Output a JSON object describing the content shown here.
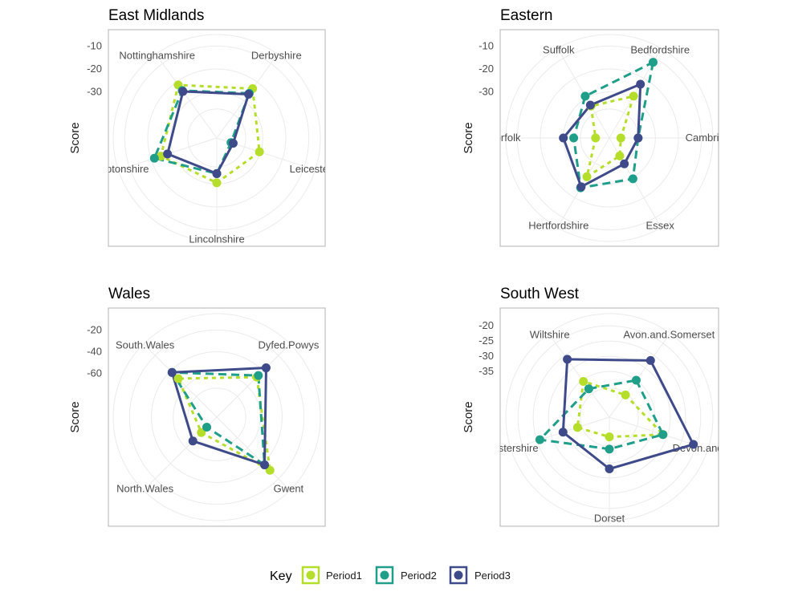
{
  "colors": {
    "Period1": "#b5de2b",
    "Period2": "#1f9e89",
    "Period3": "#3e4a89"
  },
  "legend": {
    "title": "Key",
    "items": [
      "Period1",
      "Period2",
      "Period3"
    ]
  },
  "chart_data": [
    {
      "type": "radar",
      "title": "East Midlands",
      "ylabel": "Score",
      "ticks": [
        "-10",
        "-20",
        "-30"
      ],
      "rlim": [
        -50,
        -5
      ],
      "categories": [
        "Derbyshire",
        "Leicestershire",
        "Lincolnshire",
        "Northamptonshire",
        "Nottinghamshire"
      ],
      "category_labels": [
        "Derbyshire",
        "Leicesters",
        "Lincolnshire",
        "amptonshire",
        "Nottinghamshire"
      ],
      "series": [
        {
          "name": "Period1",
          "values": [
            -23.5,
            -30.5,
            -30.5,
            -24.5,
            -21.5
          ]
        },
        {
          "name": "Period2",
          "values": [
            -26,
            -43.5,
            -34.5,
            -21.5,
            -24.5
          ]
        },
        {
          "name": "Period3",
          "values": [
            -26.5,
            -42.5,
            -34.5,
            -27.5,
            -25
          ]
        }
      ]
    },
    {
      "type": "radar",
      "title": "Eastern",
      "ylabel": "Score",
      "ticks": [
        "-10",
        "-20",
        "-30"
      ],
      "rlim": [
        -50,
        -5
      ],
      "categories": [
        "Bedfordshire",
        "Cambridgeshire",
        "Essex",
        "Hertfordshire",
        "Norfolk",
        "Suffolk"
      ],
      "category_labels": [
        "Bedfordshire",
        "Cambridge",
        "Essex",
        "Hertfordshire",
        "orfolk",
        "Suffolk"
      ],
      "series": [
        {
          "name": "Period1",
          "values": [
            -29,
            -45,
            -41,
            -30.5,
            -44,
            -34
          ]
        },
        {
          "name": "Period2",
          "values": [
            -12,
            -37.5,
            -29.5,
            -25,
            -34.5,
            -29
          ]
        },
        {
          "name": "Period3",
          "values": [
            -23,
            -37.5,
            -37,
            -25.5,
            -30,
            -33.5
          ]
        }
      ]
    },
    {
      "type": "radar",
      "title": "Wales",
      "ylabel": "Score",
      "ticks": [
        "-20",
        "-40",
        "-60"
      ],
      "rlim": [
        -100,
        -5
      ],
      "categories": [
        "Dyfed.Powys",
        "Gwent",
        "North.Wales",
        "South.Wales"
      ],
      "category_labels": [
        "Dyfed.Powys",
        "Gwent",
        "North.Wales",
        "South.Wales"
      ],
      "series": [
        {
          "name": "Period1",
          "values": [
            -48,
            -31,
            -80,
            -50
          ]
        },
        {
          "name": "Period2",
          "values": [
            -46,
            -38,
            -87,
            -42
          ]
        },
        {
          "name": "Period3",
          "values": [
            -36,
            -38,
            -69,
            -42
          ]
        }
      ]
    },
    {
      "type": "radar",
      "title": "South West",
      "ylabel": "Score",
      "ticks": [
        "-20",
        "-25",
        "-30",
        "-35"
      ],
      "rlim": [
        -50,
        -16
      ],
      "categories": [
        "Avon.and.Somerset",
        "Devon.and.Cornwall",
        "Dorset",
        "Gloucestershire",
        "Wiltshire"
      ],
      "category_labels": [
        "Avon.and.Somerset",
        "Devon.and.Co",
        "Dorset",
        "cestershire",
        "Wiltshire"
      ],
      "series": [
        {
          "name": "Period1",
          "values": [
            -41,
            -31.5,
            -43.5,
            -39,
            -35.5
          ]
        },
        {
          "name": "Period2",
          "values": [
            -35,
            -31.5,
            -39.5,
            -26,
            -38.5
          ]
        },
        {
          "name": "Period3",
          "values": [
            -27,
            -21,
            -33,
            -34,
            -26.5
          ]
        }
      ]
    }
  ]
}
